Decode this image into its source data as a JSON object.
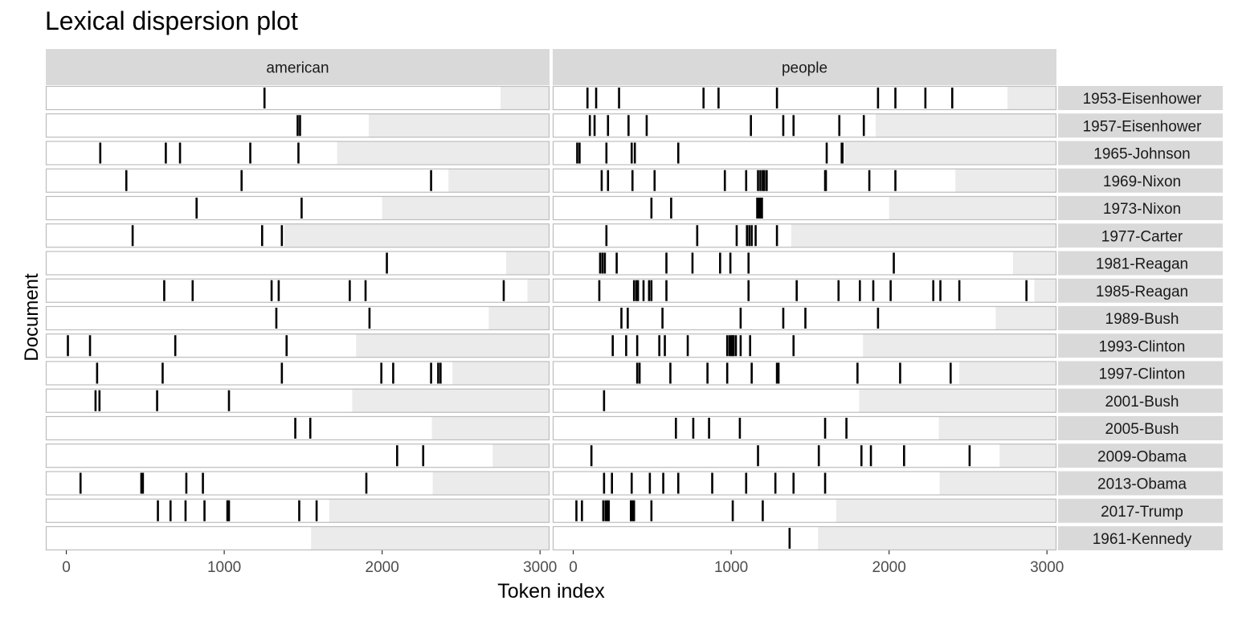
{
  "chart_data": {
    "type": "lexical-dispersion",
    "title": "Lexical dispersion plot",
    "xlabel": "Token index",
    "ylabel": "Document",
    "xlim": [
      -130,
      3060
    ],
    "x_ticks": [
      0,
      1000,
      2000,
      3000
    ],
    "x_tick_labels": [
      "0",
      "1000",
      "2000",
      "3000"
    ],
    "facets": [
      "american",
      "people"
    ],
    "documents": [
      {
        "name": "1953-Eisenhower",
        "length": 2750
      },
      {
        "name": "1957-Eisenhower",
        "length": 1915
      },
      {
        "name": "1965-Johnson",
        "length": 1715
      },
      {
        "name": "1969-Nixon",
        "length": 2420
      },
      {
        "name": "1973-Nixon",
        "length": 2000
      },
      {
        "name": "1977-Carter",
        "length": 1380
      },
      {
        "name": "1981-Reagan",
        "length": 2785
      },
      {
        "name": "1985-Reagan",
        "length": 2920
      },
      {
        "name": "1989-Bush",
        "length": 2675
      },
      {
        "name": "1993-Clinton",
        "length": 1835
      },
      {
        "name": "1997-Clinton",
        "length": 2445
      },
      {
        "name": "2001-Bush",
        "length": 1810
      },
      {
        "name": "2005-Bush",
        "length": 2315
      },
      {
        "name": "2009-Obama",
        "length": 2700
      },
      {
        "name": "2013-Obama",
        "length": 2320
      },
      {
        "name": "2017-Trump",
        "length": 1665
      },
      {
        "name": "1961-Kennedy",
        "length": 1550
      }
    ],
    "series": [
      {
        "facet": "american",
        "positions": [
          [
            1255
          ],
          [
            1465,
            1480
          ],
          [
            215,
            630,
            720,
            1165,
            1470
          ],
          [
            380,
            1110,
            2310
          ],
          [
            825,
            1490
          ],
          [
            420,
            1240,
            1365
          ],
          [
            2030
          ],
          [
            620,
            800,
            1300,
            1345,
            1795,
            1895,
            2770
          ],
          [
            1330,
            1920
          ],
          [
            10,
            150,
            690,
            1395
          ],
          [
            195,
            610,
            1365,
            1995,
            2070,
            2310,
            2355,
            2370
          ],
          [
            185,
            210,
            575,
            1030
          ],
          [
            1450,
            1545
          ],
          [
            2095,
            2260
          ],
          [
            90,
            475,
            485,
            760,
            865,
            1900
          ],
          [
            580,
            660,
            755,
            875,
            1020,
            1030,
            1475,
            1585
          ],
          []
        ]
      },
      {
        "facet": "people",
        "positions": [
          [
            90,
            145,
            290,
            825,
            920,
            1290,
            1930,
            2040,
            2230,
            2400
          ],
          [
            105,
            135,
            220,
            350,
            465,
            1125,
            1330,
            1395,
            1685,
            1840
          ],
          [
            25,
            40,
            210,
            370,
            390,
            665,
            1605,
            1700,
            1705
          ],
          [
            180,
            220,
            375,
            515,
            960,
            1095,
            1170,
            1185,
            1200,
            1210,
            1225,
            1595,
            1600,
            1875,
            2040
          ],
          [
            495,
            620,
            1165,
            1175,
            1185,
            1195
          ],
          [
            210,
            785,
            1035,
            1100,
            1115,
            1130,
            1155,
            1290
          ],
          [
            170,
            185,
            200,
            275,
            590,
            755,
            930,
            995,
            1110,
            2030
          ],
          [
            165,
            385,
            400,
            410,
            445,
            480,
            495,
            590,
            1110,
            1415,
            1680,
            1815,
            1900,
            2010,
            2280,
            2325,
            2445,
            2870
          ],
          [
            305,
            345,
            565,
            1060,
            1330,
            1470,
            1930
          ],
          [
            250,
            335,
            405,
            545,
            580,
            725,
            975,
            990,
            1000,
            1010,
            1015,
            1030,
            1060,
            1120,
            1395
          ],
          [
            405,
            420,
            615,
            850,
            975,
            1130,
            1290,
            1300,
            1800,
            2070,
            2390
          ],
          [
            195
          ],
          [
            650,
            760,
            860,
            1055,
            1595,
            1730
          ],
          [
            115,
            1170,
            1555,
            1825,
            1885,
            2095,
            2510
          ],
          [
            195,
            245,
            370,
            485,
            570,
            665,
            880,
            1095,
            1280,
            1395,
            1595
          ],
          [
            20,
            55,
            190,
            205,
            215,
            225,
            365,
            375,
            385,
            495,
            1010,
            1200
          ],
          [
            1370
          ]
        ]
      }
    ]
  }
}
